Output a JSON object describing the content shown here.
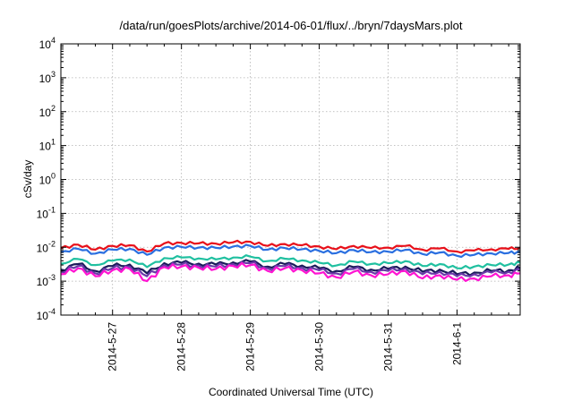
{
  "chart_data": {
    "type": "line",
    "title": "/data/run/goesPlots/archive/2014-06-01/flux/../bryn/7daysMars.plot",
    "xlabel": "Coordinated Universal Time (UTC)",
    "ylabel": "cSv/day",
    "yscale": "log",
    "ylim": [
      0.0001,
      10000
    ],
    "xlim": [
      "2014-05-26 06:00",
      "2014-06-01 22:00"
    ],
    "grid": true,
    "legend": "none",
    "ytick_labels": [
      {
        "base": "10",
        "exp": "-4"
      },
      {
        "base": "10",
        "exp": "-3"
      },
      {
        "base": "10",
        "exp": "-2"
      },
      {
        "base": "10",
        "exp": "-1"
      },
      {
        "base": "10",
        "exp": "0"
      },
      {
        "base": "10",
        "exp": "1"
      },
      {
        "base": "10",
        "exp": "2"
      },
      {
        "base": "10",
        "exp": "3"
      },
      {
        "base": "10",
        "exp": "4"
      }
    ],
    "xtick_labels": [
      "2014-5-27",
      "2014-5-28",
      "2014-5-29",
      "2014-5-30",
      "2014-5-31",
      "2014-6-1"
    ],
    "x": [
      "2014-05-26 06:00",
      "2014-05-26 12:00",
      "2014-05-26 18:00",
      "2014-05-27 00:00",
      "2014-05-27 06:00",
      "2014-05-27 12:00",
      "2014-05-27 18:00",
      "2014-05-28 00:00",
      "2014-05-28 06:00",
      "2014-05-28 12:00",
      "2014-05-28 18:00",
      "2014-05-29 00:00",
      "2014-05-29 06:00",
      "2014-05-29 12:00",
      "2014-05-29 18:00",
      "2014-05-30 00:00",
      "2014-05-30 06:00",
      "2014-05-30 12:00",
      "2014-05-30 18:00",
      "2014-05-31 00:00",
      "2014-05-31 06:00",
      "2014-05-31 12:00",
      "2014-05-31 18:00",
      "2014-06-01 00:00",
      "2014-06-01 06:00",
      "2014-06-01 12:00",
      "2014-06-01 18:00",
      "2014-06-01 22:00"
    ],
    "series": [
      {
        "color": "#e8101a",
        "values": [
          0.0095,
          0.012,
          0.0085,
          0.011,
          0.0115,
          0.0075,
          0.013,
          0.0135,
          0.013,
          0.0128,
          0.014,
          0.0145,
          0.011,
          0.0125,
          0.0115,
          0.0105,
          0.0088,
          0.011,
          0.0095,
          0.0098,
          0.011,
          0.0085,
          0.0092,
          0.0075,
          0.008,
          0.0088,
          0.009,
          0.0095
        ]
      },
      {
        "color": "#2a6fe0",
        "values": [
          0.0072,
          0.009,
          0.0065,
          0.0085,
          0.009,
          0.006,
          0.0098,
          0.0102,
          0.0098,
          0.0096,
          0.0105,
          0.011,
          0.0085,
          0.0095,
          0.0088,
          0.0078,
          0.0067,
          0.0083,
          0.0072,
          0.0074,
          0.0084,
          0.0063,
          0.007,
          0.0056,
          0.006,
          0.0066,
          0.0068,
          0.0072
        ]
      },
      {
        "color": "#20c0a0",
        "values": [
          0.0033,
          0.0045,
          0.003,
          0.004,
          0.0044,
          0.0026,
          0.0048,
          0.005,
          0.0047,
          0.0044,
          0.005,
          0.0053,
          0.0039,
          0.0046,
          0.0041,
          0.0035,
          0.0029,
          0.0038,
          0.0032,
          0.0034,
          0.0039,
          0.0028,
          0.0032,
          0.0024,
          0.0027,
          0.003,
          0.0031,
          0.0035
        ]
      },
      {
        "color": "#1a1a5a",
        "values": [
          0.0022,
          0.0032,
          0.002,
          0.0028,
          0.0031,
          0.0017,
          0.0034,
          0.0035,
          0.0033,
          0.0031,
          0.0036,
          0.0038,
          0.0027,
          0.0032,
          0.0029,
          0.0024,
          0.002,
          0.0026,
          0.0022,
          0.0023,
          0.0027,
          0.0019,
          0.0022,
          0.0016,
          0.0018,
          0.002,
          0.0021,
          0.0024
        ]
      },
      {
        "color": "#6a3aa8",
        "values": [
          0.0019,
          0.0028,
          0.0017,
          0.0024,
          0.0027,
          0.0014,
          0.003,
          0.0031,
          0.0029,
          0.0027,
          0.0032,
          0.0034,
          0.0024,
          0.0028,
          0.0025,
          0.0021,
          0.0017,
          0.0023,
          0.0019,
          0.002,
          0.0024,
          0.0016,
          0.0019,
          0.0014,
          0.0016,
          0.0018,
          0.0019,
          0.0021
        ]
      },
      {
        "color": "#ff14d2",
        "values": [
          0.0016,
          0.0024,
          0.0014,
          0.0021,
          0.0023,
          0.001,
          0.0026,
          0.0027,
          0.0025,
          0.0023,
          0.0028,
          0.003,
          0.002,
          0.0024,
          0.0021,
          0.0017,
          0.0013,
          0.0019,
          0.0015,
          0.0016,
          0.002,
          0.0012,
          0.0015,
          0.0011,
          0.0012,
          0.0014,
          0.0015,
          0.0017
        ]
      }
    ]
  }
}
